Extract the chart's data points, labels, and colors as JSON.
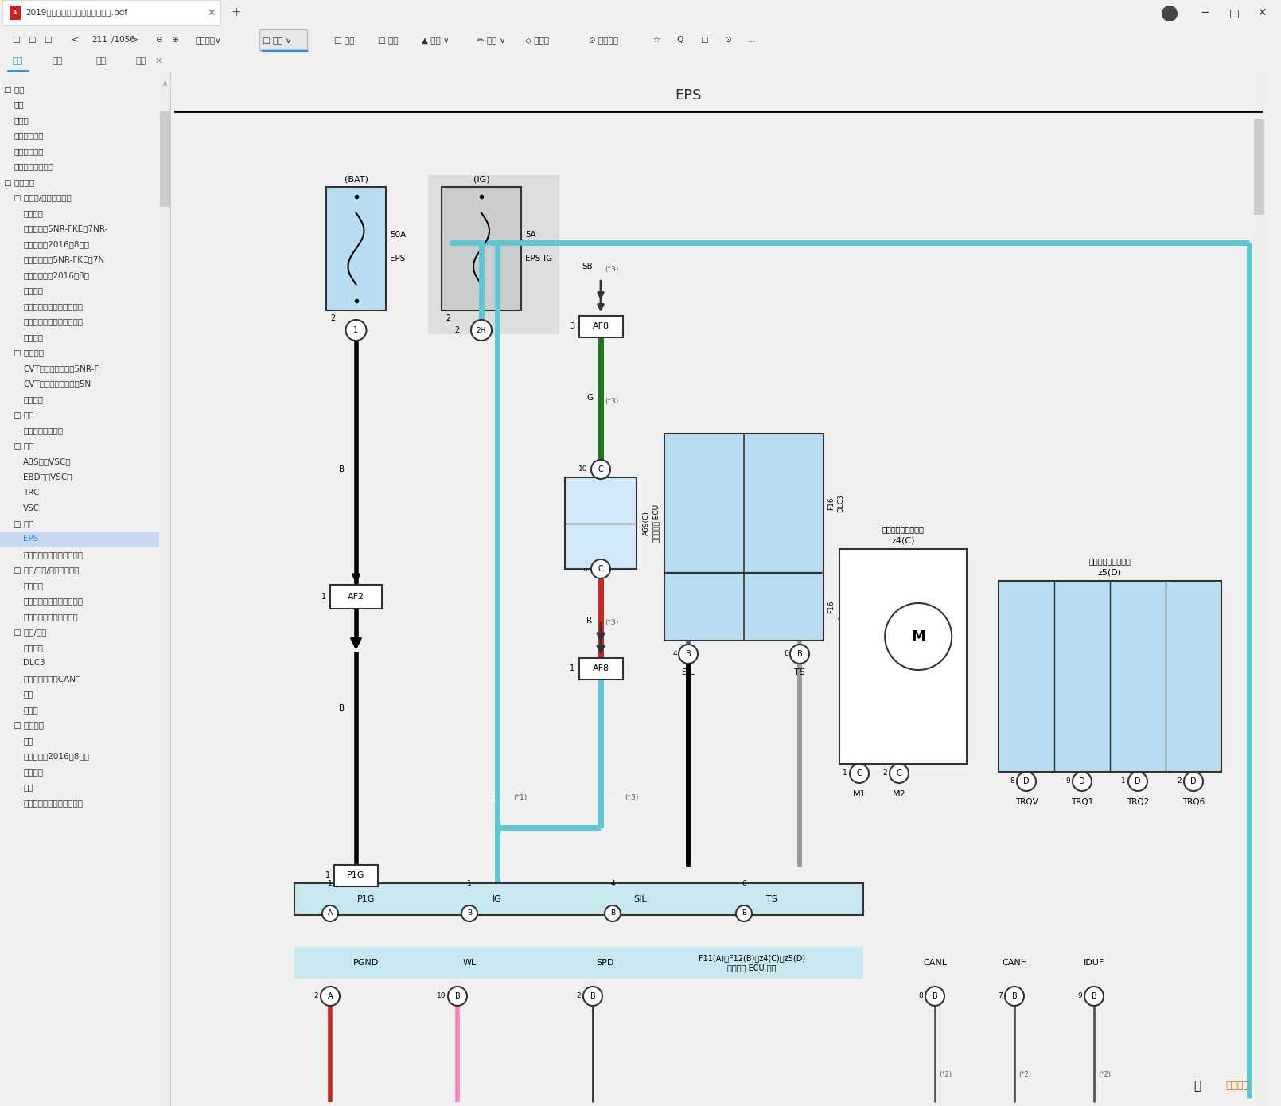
{
  "title_bar": "2019年丰田威驰雅力士致炫电路图.pdf",
  "page_num": "211",
  "total_pages": "1056",
  "sidebar_items": [
    [
      "□ 概述",
      0,
      false
    ],
    [
      "概述",
      1,
      false
    ],
    [
      "缩略语",
      1,
      false
    ],
    [
      "术语和符号表",
      1,
      false
    ],
    [
      "线束维修概述",
      1,
      false
    ],
    [
      "端子和连接器维修",
      1,
      false
    ],
    [
      "□ 系统电路",
      0,
      false
    ],
    [
      "□ 发动机/混合动力系统",
      1,
      false
    ],
    [
      "冷却风扇",
      2,
      false
    ],
    [
      "巡航控制（5NR-FKE、7NR-",
      2,
      false
    ],
    [
      "巡航控制（2016年8月之",
      2,
      false
    ],
    [
      "发动机控制（5NR-FKE、7N",
      2,
      false
    ],
    [
      "发动机控制（2016年8月",
      2,
      false
    ],
    [
      "点火系统",
      2,
      false
    ],
    [
      "起动（带智能上车和起动系",
      2,
      false
    ],
    [
      "起动（不带智能上车和起动",
      2,
      false
    ],
    [
      "启停系统",
      2,
      false
    ],
    [
      "□ 传动系统",
      1,
      false
    ],
    [
      "CVT和换档指示灯（5NR-F",
      2,
      false
    ],
    [
      "CVT和换档指示灯（除5N",
      2,
      false
    ],
    [
      "换档锁止",
      2,
      false
    ],
    [
      "□ 悬架",
      1,
      false
    ],
    [
      "轮胎压力警告系统",
      2,
      false
    ],
    [
      "□ 制动",
      1,
      false
    ],
    [
      "ABS（带VSC）",
      2,
      false
    ],
    [
      "EBD（带VSC）",
      2,
      false
    ],
    [
      "TRC",
      2,
      false
    ],
    [
      "VSC",
      2,
      false
    ],
    [
      "□ 转向",
      1,
      false
    ],
    [
      "EPS",
      2,
      true
    ],
    [
      "转向锁止（带智能上车和起",
      2,
      false
    ],
    [
      "□ 音频/视频/车载通信系统",
      1,
      false
    ],
    [
      "音响系统",
      2,
      false
    ],
    [
      "选装件连接器（后视野监视",
      2,
      false
    ],
    [
      "丰田驻车辅助传感器系统",
      2,
      false
    ],
    [
      "□ 电源/网络",
      1,
      false
    ],
    [
      "充电系统",
      2,
      false
    ],
    [
      "DLC3",
      2,
      false
    ],
    [
      "多路通信系统（CAN）",
      2,
      false
    ],
    [
      "电源",
      2,
      false
    ],
    [
      "搭铁点",
      2,
      false
    ],
    [
      "□ 车辆内饰",
      1,
      false
    ],
    [
      "空调",
      2,
      false
    ],
    [
      "组合仪表（2016年8月之",
      2,
      false
    ],
    [
      "门锁控制",
      2,
      false
    ],
    [
      "照明",
      2,
      false
    ],
    [
      "停机系统（带智能上车和起",
      2,
      false
    ]
  ]
}
